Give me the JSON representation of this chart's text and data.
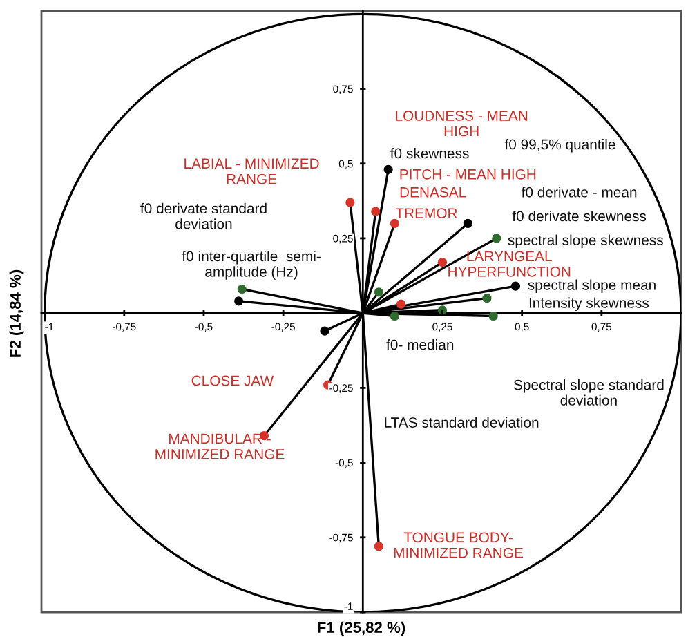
{
  "chart_data": {
    "type": "scatter",
    "xlabel": "F1 (25,82 %)",
    "ylabel": "F2 (14,84 %)",
    "xlim": [
      -1.01,
      1.0
    ],
    "ylim": [
      -1.0,
      1.01
    ],
    "xticks": [
      {
        "value": -1,
        "label": "-1"
      },
      {
        "value": -0.75,
        "label": "-0,75"
      },
      {
        "value": -0.5,
        "label": "-0,5"
      },
      {
        "value": -0.25,
        "label": "-0,25"
      },
      {
        "value": 0.25,
        "label": "0,25"
      },
      {
        "value": 0.5,
        "label": "0,5"
      },
      {
        "value": 0.75,
        "label": "0,75"
      }
    ],
    "yticks": [
      {
        "value": -1,
        "label": "-1"
      },
      {
        "value": -0.75,
        "label": "-0,75"
      },
      {
        "value": -0.5,
        "label": "-0,5"
      },
      {
        "value": -0.25,
        "label": "-0,25"
      },
      {
        "value": 0.25,
        "label": "0,25"
      },
      {
        "value": 0.5,
        "label": "0,5"
      },
      {
        "value": 0.75,
        "label": "0,75"
      }
    ],
    "grid": false,
    "series": [
      {
        "type": "line",
        "color": "#000000",
        "x": [
          0,
          0.08
        ],
        "values": [
          0,
          0.48
        ]
      },
      {
        "type": "line",
        "color": "#000000",
        "x": [
          0,
          0.33
        ],
        "values": [
          0,
          0.3
        ]
      },
      {
        "type": "line",
        "color": "#000000",
        "x": [
          0,
          0.48
        ],
        "values": [
          0,
          0.09
        ]
      },
      {
        "type": "line",
        "color": "#000000",
        "x": [
          0,
          -0.39
        ],
        "values": [
          0,
          0.04
        ]
      },
      {
        "type": "line",
        "color": "#000000",
        "x": [
          0,
          -0.12
        ],
        "values": [
          0,
          -0.06
        ]
      },
      {
        "type": "line",
        "color": "#000000",
        "x": [
          0,
          0.42
        ],
        "values": [
          0,
          0.25
        ]
      },
      {
        "type": "line",
        "color": "#000000",
        "x": [
          0,
          0.39
        ],
        "values": [
          0,
          0.05
        ]
      },
      {
        "type": "line",
        "color": "#000000",
        "x": [
          0,
          0.41
        ],
        "values": [
          0,
          -0.01
        ]
      },
      {
        "type": "line",
        "color": "#000000",
        "x": [
          0,
          0.25
        ],
        "values": [
          0,
          0.01
        ]
      },
      {
        "type": "line",
        "color": "#000000",
        "x": [
          0,
          0.1
        ],
        "values": [
          0,
          -0.01
        ]
      },
      {
        "type": "line",
        "color": "#000000",
        "x": [
          0,
          0.05
        ],
        "values": [
          0,
          0.07
        ]
      },
      {
        "type": "line",
        "color": "#000000",
        "x": [
          0,
          -0.38
        ],
        "values": [
          0,
          0.08
        ]
      },
      {
        "type": "line",
        "color": "#000000",
        "x": [
          0,
          -0.04
        ],
        "values": [
          0,
          0.37
        ]
      },
      {
        "type": "line",
        "color": "#000000",
        "x": [
          0,
          0.04
        ],
        "values": [
          0,
          0.34
        ]
      },
      {
        "type": "line",
        "color": "#000000",
        "x": [
          0,
          0.1
        ],
        "values": [
          0,
          0.3
        ]
      },
      {
        "type": "line",
        "color": "#000000",
        "x": [
          0,
          0.25
        ],
        "values": [
          0,
          0.17
        ]
      },
      {
        "type": "line",
        "color": "#000000",
        "x": [
          0,
          0.12
        ],
        "values": [
          0,
          0.03
        ]
      },
      {
        "type": "line",
        "color": "#000000",
        "x": [
          0,
          -0.11
        ],
        "values": [
          0,
          -0.24
        ]
      },
      {
        "type": "line",
        "color": "#000000",
        "x": [
          0,
          -0.31
        ],
        "values": [
          0,
          -0.41
        ]
      },
      {
        "type": "line",
        "color": "#000000",
        "x": [
          0,
          0.05
        ],
        "values": [
          0,
          -0.78
        ]
      },
      {
        "marker": "circle",
        "color": "#000000",
        "x": [
          0.08,
          0.33,
          0.48,
          -0.39,
          -0.12
        ],
        "values": [
          0.48,
          0.3,
          0.09,
          0.04,
          -0.06
        ]
      },
      {
        "marker": "circle",
        "color": "#2f6a2f",
        "x": [
          0.42,
          0.39,
          0.41,
          0.25,
          0.1,
          0.05,
          -0.38
        ],
        "values": [
          0.25,
          0.05,
          -0.01,
          0.01,
          -0.01,
          0.07,
          0.08
        ]
      },
      {
        "marker": "circle",
        "color": "#d9342b",
        "x": [
          -0.04,
          0.04,
          0.1,
          0.25,
          0.12,
          -0.11,
          -0.31,
          0.05
        ],
        "values": [
          0.37,
          0.34,
          0.3,
          0.17,
          0.03,
          -0.24,
          -0.41,
          -0.78
        ]
      }
    ],
    "annotations": [
      "LOUDNESS - MEAN\nHIGH",
      "f0 99,5% quantile",
      "LABIAL - MINIMIZED\nRANGE",
      "f0 skewness",
      "PITCH - MEAN HIGH",
      "DENASAL",
      "f0 derivate - mean",
      "TREMOR",
      "f0 derivate skewness",
      "f0 derivate standard\ndeviation",
      "spectral slope skewness",
      "LARYNGEAL\nHYPERFUNCTION",
      "f0 inter-quartile  semi-\namplitude (Hz)",
      "spectral slope mean",
      "Intensity skewness",
      "f0- median",
      "Spectral slope standard\ndeviation",
      "CLOSE JAW",
      "LTAS standard deviation",
      "MANDIBULAR -\nMINIMIZED RANGE",
      "TONGUE BODY-\nMINIMIZED RANGE"
    ]
  }
}
